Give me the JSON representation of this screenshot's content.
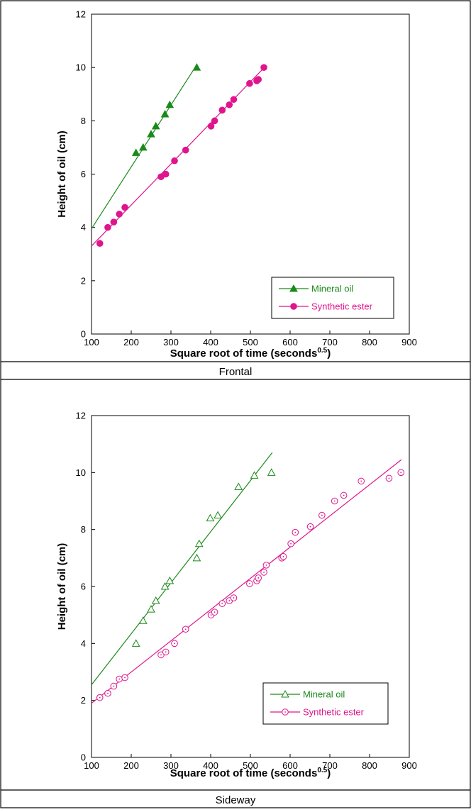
{
  "chart_data": [
    {
      "type": "scatter",
      "caption": "Frontal",
      "xlabel": "Square root of time (seconds",
      "xlabel_sup": "0.5",
      "xlabel_suffix": ")",
      "ylabel": "Height of oil (cm)",
      "xlim": [
        100,
        900
      ],
      "ylim": [
        0,
        12
      ],
      "xticks": [
        100,
        200,
        300,
        400,
        500,
        600,
        700,
        800,
        900
      ],
      "yticks": [
        0,
        2,
        4,
        6,
        8,
        10,
        12
      ],
      "grid": false,
      "legend_position": "bottom-right",
      "series": [
        {
          "name": "Mineral oil",
          "color": "#1a8a1a",
          "marker": "filled-triangle",
          "x": [
            212,
            230,
            250,
            262,
            285,
            297,
            365
          ],
          "y": [
            6.8,
            7.0,
            7.5,
            7.8,
            8.25,
            8.6,
            10.0
          ],
          "fit": {
            "x": [
              100,
              365
            ],
            "y": [
              3.95,
              10.1
            ]
          }
        },
        {
          "name": "Synthetic ester",
          "color": "#e0148c",
          "marker": "filled-circle",
          "x": [
            121,
            141,
            156,
            170,
            184,
            275,
            287,
            309,
            337,
            401,
            410,
            429,
            447,
            458,
            498,
            516,
            520,
            534
          ],
          "y": [
            3.4,
            4.0,
            4.2,
            4.5,
            4.75,
            5.9,
            6.0,
            6.5,
            6.9,
            7.8,
            8.0,
            8.4,
            8.6,
            8.8,
            9.4,
            9.5,
            9.55,
            10.0
          ],
          "fit": {
            "x": [
              100,
              535
            ],
            "y": [
              3.3,
              10.0
            ]
          }
        }
      ]
    },
    {
      "type": "scatter",
      "caption": "Sideway",
      "xlabel": "Square root of time (seconds",
      "xlabel_sup": "0.5",
      "xlabel_suffix": ")",
      "ylabel": "Height of oil (cm)",
      "xlim": [
        100,
        900
      ],
      "ylim": [
        0,
        12
      ],
      "xticks": [
        100,
        200,
        300,
        400,
        500,
        600,
        700,
        800,
        900
      ],
      "yticks": [
        0,
        2,
        4,
        6,
        8,
        10,
        12
      ],
      "grid": false,
      "legend_position": "bottom-right",
      "series": [
        {
          "name": "Mineral oil",
          "color": "#1a8a1a",
          "marker": "open-triangle",
          "x": [
            212,
            230,
            250,
            262,
            285,
            297,
            365,
            371,
            399,
            418,
            470,
            510,
            553
          ],
          "y": [
            4.0,
            4.8,
            5.2,
            5.5,
            6.0,
            6.2,
            7.0,
            7.5,
            8.4,
            8.5,
            9.5,
            9.9,
            10.0
          ],
          "fit": {
            "x": [
              100,
              555
            ],
            "y": [
              2.55,
              10.7
            ]
          }
        },
        {
          "name": "Synthetic ester",
          "color": "#e0148c",
          "marker": "dotted-circle",
          "x": [
            121,
            141,
            156,
            170,
            184,
            275,
            287,
            309,
            337,
            401,
            410,
            429,
            447,
            458,
            498,
            516,
            520,
            534,
            540,
            579,
            583,
            602,
            613,
            651,
            680,
            712,
            735,
            779,
            849,
            879
          ],
          "y": [
            2.1,
            2.25,
            2.5,
            2.75,
            2.8,
            3.6,
            3.7,
            4.0,
            4.5,
            5.0,
            5.1,
            5.4,
            5.5,
            5.6,
            6.1,
            6.2,
            6.3,
            6.5,
            6.75,
            7.0,
            7.05,
            7.5,
            7.9,
            8.1,
            8.5,
            9.0,
            9.2,
            9.7,
            9.8,
            10.0
          ],
          "fit": {
            "x": [
              100,
              880
            ],
            "y": [
              1.9,
              10.45
            ]
          }
        }
      ]
    }
  ]
}
